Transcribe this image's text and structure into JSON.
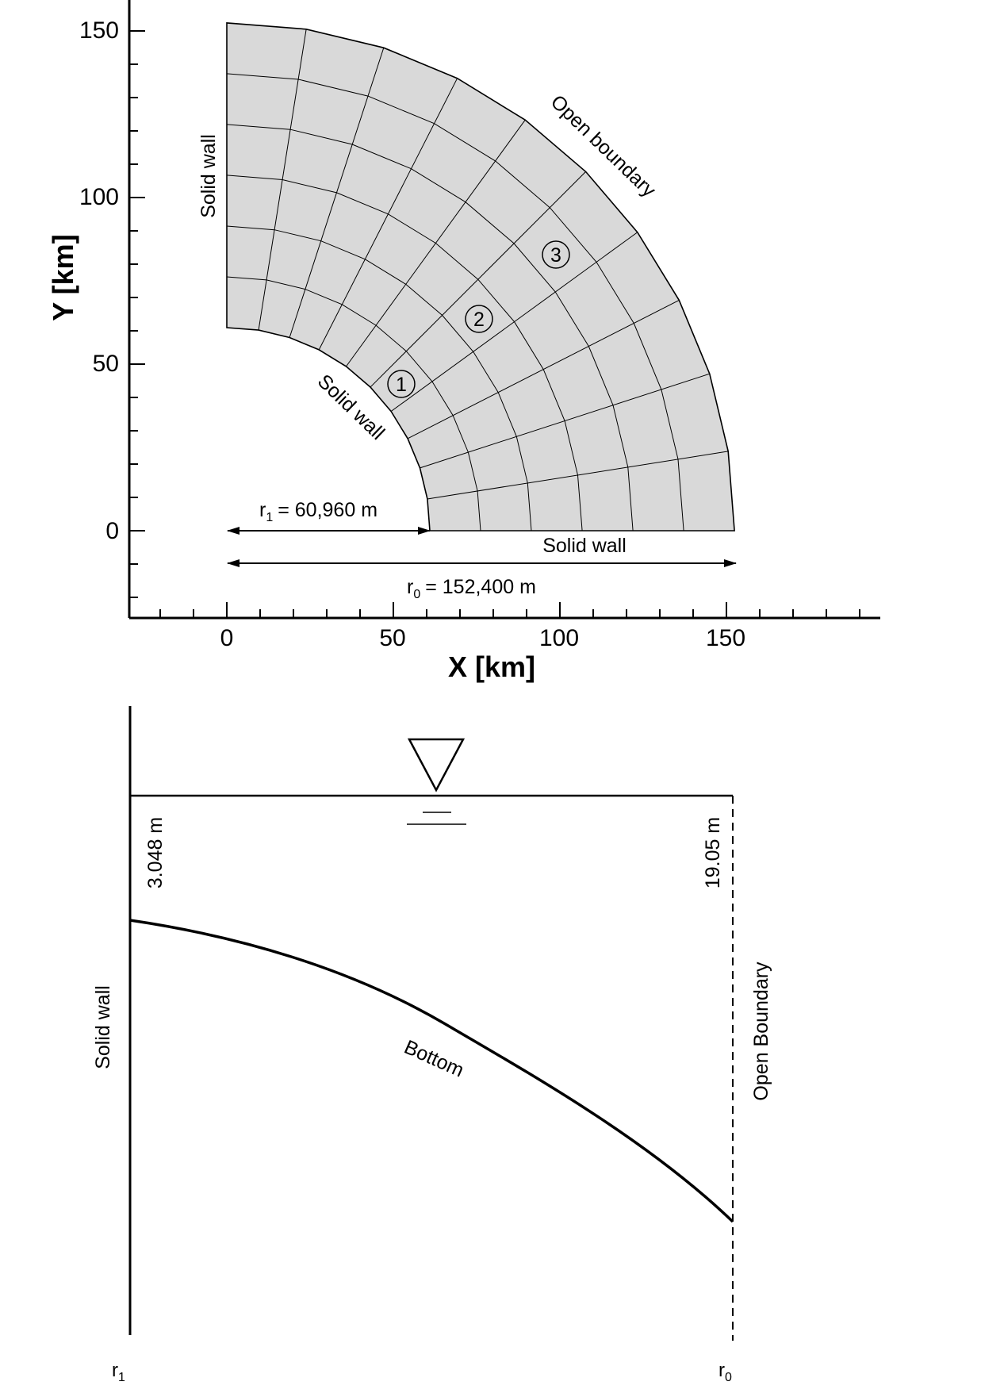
{
  "mesh_plot": {
    "x_axis": {
      "label": "X [km]",
      "ticks": [
        "0",
        "50",
        "100",
        "150"
      ],
      "range": [
        -30,
        196
      ]
    },
    "y_axis": {
      "label": "Y [km]",
      "ticks": [
        "0",
        "50",
        "100",
        "150"
      ],
      "range": [
        -27,
        162
      ]
    },
    "inner_radius_km": 60.96,
    "outer_radius_km": 152.4,
    "radial_divisions": 6,
    "angular_divisions": 10,
    "labels": {
      "solid_wall_left": "Solid wall",
      "solid_wall_inner": "Solid wall",
      "solid_wall_bottom": "Solid wall",
      "open_boundary": "Open boundary",
      "r1": "r",
      "r1_sub": "1",
      "r1_value": "= 60,960 m",
      "r0": "r",
      "r0_sub": "0",
      "r0_value": "= 152,400 m"
    },
    "markers": [
      "①",
      "②",
      "③"
    ]
  },
  "profile": {
    "depth_left": "3.048 m",
    "depth_right": "19.05 m",
    "solid_wall": "Solid wall",
    "open_boundary": "Open Boundary",
    "bottom": "Bottom",
    "r1": "r",
    "r1_sub": "1",
    "r0": "r",
    "r0_sub": "0"
  }
}
